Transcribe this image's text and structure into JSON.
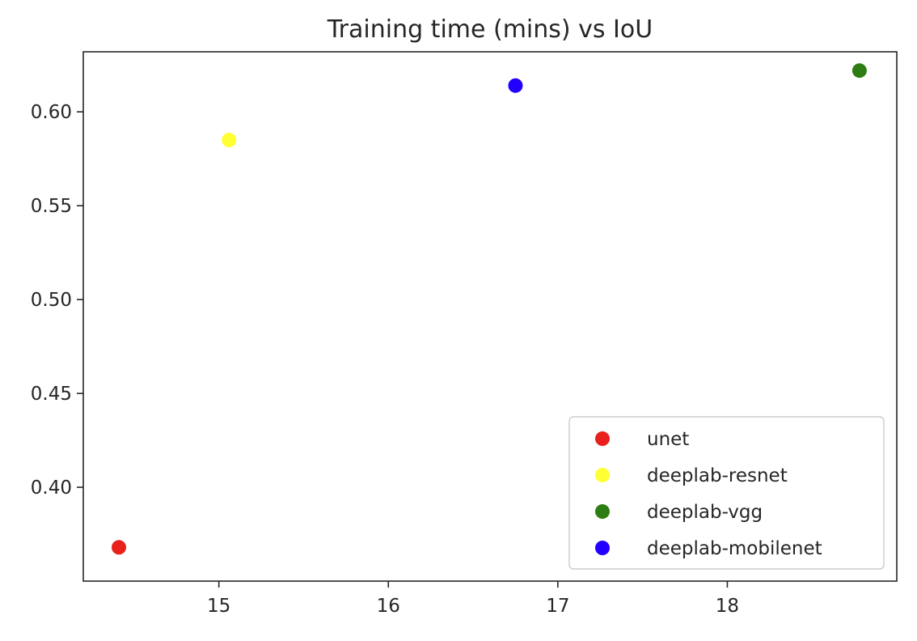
{
  "chart_data": {
    "type": "scatter",
    "title": "Training time (mins) vs IoU",
    "xlabel": "",
    "ylabel": "",
    "xlim": [
      14.2,
      19.0
    ],
    "ylim": [
      0.35,
      0.632
    ],
    "xticks": [
      15,
      16,
      17,
      18
    ],
    "yticks": [
      0.4,
      0.45,
      0.5,
      0.55,
      0.6
    ],
    "xtick_labels": [
      "15",
      "16",
      "17",
      "18"
    ],
    "ytick_labels": [
      "0.40",
      "0.45",
      "0.50",
      "0.55",
      "0.60"
    ],
    "grid": false,
    "legend_position": "bottom-right",
    "series": [
      {
        "name": "unet",
        "color": "#e8211d",
        "points": [
          {
            "x": 14.41,
            "y": 0.368
          }
        ]
      },
      {
        "name": "deeplab-resnet",
        "color": "#ffff33",
        "points": [
          {
            "x": 15.06,
            "y": 0.585
          }
        ]
      },
      {
        "name": "deeplab-vgg",
        "color": "#2e7d14",
        "points": [
          {
            "x": 18.78,
            "y": 0.622
          }
        ]
      },
      {
        "name": "deeplab-mobilenet",
        "color": "#2200ff",
        "points": [
          {
            "x": 16.75,
            "y": 0.614
          }
        ]
      }
    ]
  }
}
